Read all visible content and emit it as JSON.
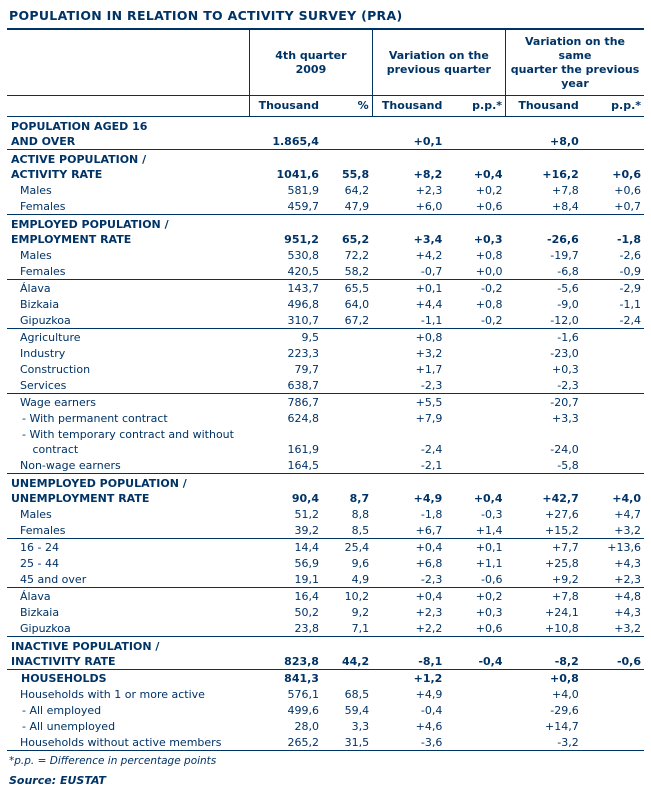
{
  "title": "POPULATION IN RELATION TO ACTIVITY SURVEY (PRA)",
  "colors": {
    "navy": "#003366",
    "background": "#ffffff"
  },
  "header": {
    "groups": [
      "4th quarter\n2009",
      "Variation on the\nprevious quarter",
      "Variation on the same\nquarter the previous\nyear"
    ],
    "columns": [
      "Thousand",
      "%",
      "Thousand",
      "p.p.*",
      "Thousand",
      "p.p.*"
    ]
  },
  "rows": [
    {
      "label": "POPULATION AGED 16\nAND OVER",
      "class": "section",
      "divider": true,
      "values": [
        "1.865,4",
        "",
        "+0,1",
        "",
        "+8,0",
        ""
      ]
    },
    {
      "label": "ACTIVE POPULATION /\nACTIVITY RATE",
      "class": "section",
      "divider": false,
      "values": [
        "1041,6",
        "55,8",
        "+8,2",
        "+0,4",
        "+16,2",
        "+0,6"
      ]
    },
    {
      "label": "Males",
      "class": "item",
      "divider": false,
      "values": [
        "581,9",
        "64,2",
        "+2,3",
        "+0,2",
        "+7,8",
        "+0,6"
      ]
    },
    {
      "label": "Females",
      "class": "item",
      "divider": true,
      "values": [
        "459,7",
        "47,9",
        "+6,0",
        "+0,6",
        "+8,4",
        "+0,7"
      ]
    },
    {
      "label": "EMPLOYED POPULATION /\nEMPLOYMENT RATE",
      "class": "section",
      "divider": false,
      "values": [
        "951,2",
        "65,2",
        "+3,4",
        "+0,3",
        "-26,6",
        "-1,8"
      ]
    },
    {
      "label": "Males",
      "class": "item",
      "divider": false,
      "values": [
        "530,8",
        "72,2",
        "+4,2",
        "+0,8",
        "-19,7",
        "-2,6"
      ]
    },
    {
      "label": "Females",
      "class": "item",
      "divider": true,
      "values": [
        "420,5",
        "58,2",
        "-0,7",
        "+0,0",
        "-6,8",
        "-0,9"
      ]
    },
    {
      "label": "Álava",
      "class": "item",
      "divider": false,
      "values": [
        "143,7",
        "65,5",
        "+0,1",
        "-0,2",
        "-5,6",
        "-2,9"
      ]
    },
    {
      "label": "Bizkaia",
      "class": "item",
      "divider": false,
      "values": [
        "496,8",
        "64,0",
        "+4,4",
        "+0,8",
        "-9,0",
        "-1,1"
      ]
    },
    {
      "label": "Gipuzkoa",
      "class": "item",
      "divider": true,
      "values": [
        "310,7",
        "67,2",
        "-1,1",
        "-0,2",
        "-12,0",
        "-2,4"
      ]
    },
    {
      "label": "Agriculture",
      "class": "item",
      "divider": false,
      "values": [
        "9,5",
        "",
        "+0,8",
        "",
        "-1,6",
        ""
      ]
    },
    {
      "label": "Industry",
      "class": "item",
      "divider": false,
      "values": [
        "223,3",
        "",
        "+3,2",
        "",
        "-23,0",
        ""
      ]
    },
    {
      "label": "Construction",
      "class": "item",
      "divider": false,
      "values": [
        "79,7",
        "",
        "+1,7",
        "",
        "+0,3",
        ""
      ]
    },
    {
      "label": "Services",
      "class": "item",
      "divider": true,
      "values": [
        "638,7",
        "",
        "-2,3",
        "",
        "-2,3",
        ""
      ]
    },
    {
      "label": "Wage earners",
      "class": "item",
      "divider": false,
      "values": [
        "786,7",
        "",
        "+5,5",
        "",
        "-20,7",
        ""
      ]
    },
    {
      "label": "- With permanent contract",
      "class": "subitem",
      "divider": false,
      "values": [
        "624,8",
        "",
        "+7,9",
        "",
        "+3,3",
        ""
      ]
    },
    {
      "label": "- With temporary contract and without\n   contract",
      "class": "subitem",
      "divider": false,
      "values": [
        "161,9",
        "",
        "-2,4",
        "",
        "-24,0",
        ""
      ]
    },
    {
      "label": "Non-wage earners",
      "class": "item",
      "divider": true,
      "values": [
        "164,5",
        "",
        "-2,1",
        "",
        "-5,8",
        ""
      ]
    },
    {
      "label": "UNEMPLOYED POPULATION /\nUNEMPLOYMENT RATE",
      "class": "section",
      "divider": false,
      "values": [
        "90,4",
        "8,7",
        "+4,9",
        "+0,4",
        "+42,7",
        "+4,0"
      ]
    },
    {
      "label": "Males",
      "class": "item",
      "divider": false,
      "values": [
        "51,2",
        "8,8",
        "-1,8",
        "-0,3",
        "+27,6",
        "+4,7"
      ]
    },
    {
      "label": "Females",
      "class": "item",
      "divider": true,
      "values": [
        "39,2",
        "8,5",
        "+6,7",
        "+1,4",
        "+15,2",
        "+3,2"
      ]
    },
    {
      "label": "16 - 24",
      "class": "item",
      "divider": false,
      "values": [
        "14,4",
        "25,4",
        "+0,4",
        "+0,1",
        "+7,7",
        "+13,6"
      ]
    },
    {
      "label": "25 - 44",
      "class": "item",
      "divider": false,
      "values": [
        "56,9",
        "9,6",
        "+6,8",
        "+1,1",
        "+25,8",
        "+4,3"
      ]
    },
    {
      "label": "45 and over",
      "class": "item",
      "divider": true,
      "values": [
        "19,1",
        "4,9",
        "-2,3",
        "-0,6",
        "+9,2",
        "+2,3"
      ]
    },
    {
      "label": "Álava",
      "class": "item",
      "divider": false,
      "values": [
        "16,4",
        "10,2",
        "+0,4",
        "+0,2",
        "+7,8",
        "+4,8"
      ]
    },
    {
      "label": "Bizkaia",
      "class": "item",
      "divider": false,
      "values": [
        "50,2",
        "9,2",
        "+2,3",
        "+0,3",
        "+24,1",
        "+4,3"
      ]
    },
    {
      "label": "Gipuzkoa",
      "class": "item",
      "divider": true,
      "values": [
        "23,8",
        "7,1",
        "+2,2",
        "+0,6",
        "+10,8",
        "+3,2"
      ]
    },
    {
      "label": "INACTIVE POPULATION /\nINACTIVITY RATE",
      "class": "section",
      "divider": true,
      "values": [
        "823,8",
        "44,2",
        "-8,1",
        "-0,4",
        "-8,2",
        "-0,6"
      ]
    },
    {
      "label": "HOUSEHOLDS",
      "class": "section-sub",
      "divider": false,
      "values": [
        "841,3",
        "",
        "+1,2",
        "",
        "+0,8",
        ""
      ]
    },
    {
      "label": "Households with 1 or more active",
      "class": "item",
      "divider": false,
      "values": [
        "576,1",
        "68,5",
        "+4,9",
        "",
        "+4,0",
        ""
      ]
    },
    {
      "label": "- All employed",
      "class": "subitem",
      "divider": false,
      "values": [
        "499,6",
        "59,4",
        "-0,4",
        "",
        "-29,6",
        ""
      ]
    },
    {
      "label": "- All unemployed",
      "class": "subitem",
      "divider": false,
      "values": [
        "28,0",
        "3,3",
        "+4,6",
        "",
        "+14,7",
        ""
      ]
    },
    {
      "label": "Households without active members",
      "class": "item",
      "divider": true,
      "values": [
        "265,2",
        "31,5",
        "-3,6",
        "",
        "-3,2",
        ""
      ]
    }
  ],
  "footnote": "*p.p. = Difference in percentage points",
  "source": "Source: EUSTAT"
}
